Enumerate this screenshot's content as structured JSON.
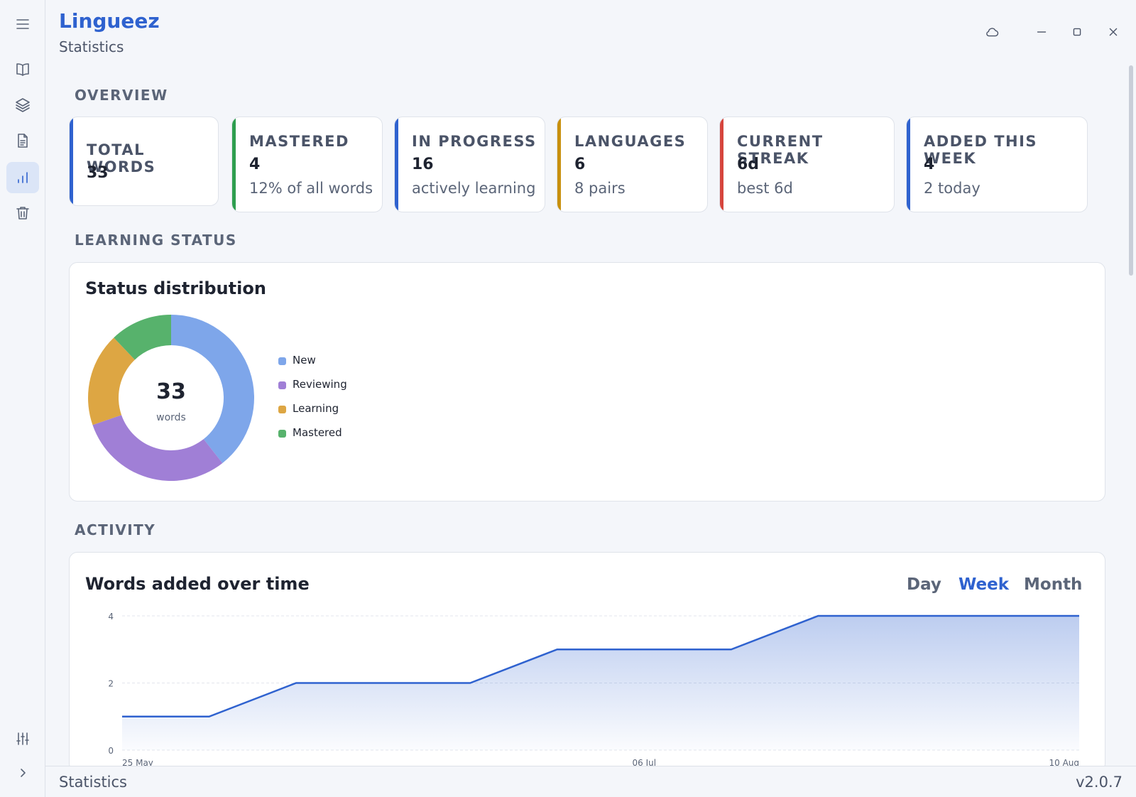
{
  "app": {
    "title": "Lingueez",
    "subtitle": "Statistics"
  },
  "rail": {
    "items": [
      {
        "icon": "menu-icon"
      },
      {
        "icon": "book-icon"
      },
      {
        "icon": "layers-icon"
      },
      {
        "icon": "document-icon"
      },
      {
        "icon": "bar-chart-icon",
        "active": true
      },
      {
        "icon": "trash-icon"
      },
      {
        "icon": "sliders-icon"
      },
      {
        "icon": "chevron-right-icon"
      }
    ]
  },
  "window_controls": [
    "cloud-icon",
    "minimize-icon",
    "maximize-icon",
    "close-icon"
  ],
  "sections": {
    "overview": "OVERVIEW",
    "learning_status": "LEARNING STATUS",
    "activity": "ACTIVITY"
  },
  "stats": [
    {
      "label": "TOTAL WORDS",
      "value": "33",
      "sub": "",
      "color": "#2f62cf"
    },
    {
      "label": "MASTERED",
      "value": "4",
      "sub": "12% of all words",
      "color": "#2e9e4f"
    },
    {
      "label": "IN PROGRESS",
      "value": "16",
      "sub": "actively learning",
      "color": "#2f62cf"
    },
    {
      "label": "LANGUAGES",
      "value": "6",
      "sub": "8 pairs",
      "color": "#c8900e"
    },
    {
      "label": "CURRENT STREAK",
      "value": "6d",
      "sub": "best 6d",
      "color": "#d6453d"
    },
    {
      "label": "ADDED THIS WEEK",
      "value": "4",
      "sub": "2 today",
      "color": "#2f62cf"
    }
  ],
  "status_panel": {
    "title": "Status distribution",
    "center_value": "33",
    "center_label": "words"
  },
  "activity_panel": {
    "title": "Words added over time",
    "tabs": [
      "Day",
      "Week",
      "Month"
    ],
    "active_tab": "Week"
  },
  "chart_data": [
    {
      "type": "pie",
      "title": "Status distribution",
      "categories": [
        "New",
        "Reviewing",
        "Learning",
        "Mastered"
      ],
      "values": [
        13,
        10,
        6,
        4
      ],
      "value_labels": [
        "13 · 39%",
        "10 · 30%",
        "6 · 18%",
        "4 · 12%"
      ],
      "colors": [
        "#7ea6ea",
        "#a07fd6",
        "#dda643",
        "#57b26c"
      ]
    },
    {
      "type": "area",
      "title": "Words added over time",
      "x": [
        "25 May",
        "01 Jun",
        "08 Jun",
        "15 Jun",
        "22 Jun",
        "29 Jun",
        "06 Jul",
        "13 Jul",
        "20 Jul",
        "27 Jul",
        "03 Aug",
        "10 Aug"
      ],
      "series": [
        {
          "values": [
            1,
            1,
            2,
            2,
            2,
            3,
            3,
            3,
            4,
            4,
            4,
            4
          ]
        }
      ],
      "x_tick_labels": [
        "25 May",
        "06 Jul",
        "10 Aug"
      ],
      "y_ticks": [
        0,
        2,
        4
      ],
      "ylim": [
        0,
        4
      ],
      "grid": true,
      "color": "#2f62cf"
    }
  ],
  "statusbar": {
    "left": "Statistics",
    "right": "v2.0.7"
  }
}
